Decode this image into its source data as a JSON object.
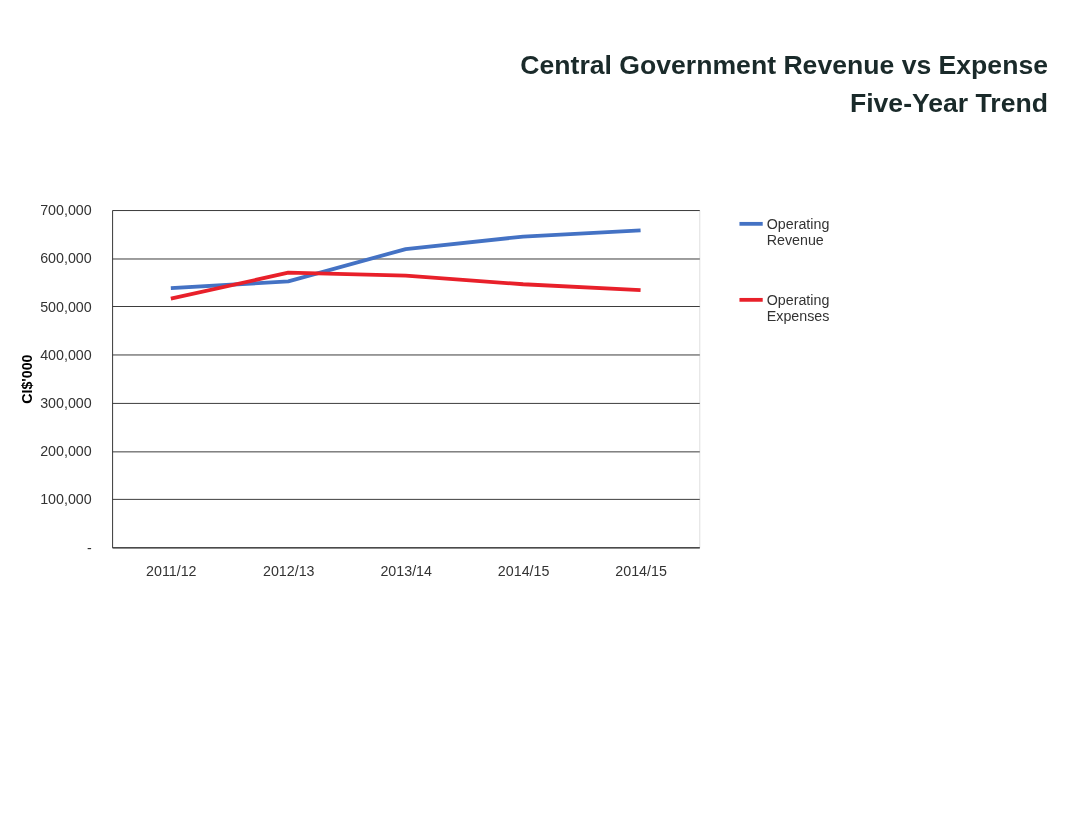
{
  "chart_data": {
    "type": "line",
    "title": "Central Government Revenue vs Expense\nFive-Year Trend",
    "ylabel": "CI$'000",
    "categories": [
      "2011/12",
      "2012/13",
      "2013/14",
      "2014/15",
      "2014/15"
    ],
    "series": [
      {
        "name": "Operating Revenue",
        "color": "#4472c4",
        "values": [
          538000,
          552000,
          619000,
          645000,
          658000
        ]
      },
      {
        "name": "Operating Expenses",
        "color": "#e8202a",
        "values": [
          516000,
          570000,
          564000,
          546000,
          534000
        ]
      }
    ],
    "ylim": [
      0,
      700000
    ],
    "yticks": [
      {
        "value": 0,
        "label": "-"
      },
      {
        "value": 100000,
        "label": "100,000"
      },
      {
        "value": 200000,
        "label": "200,000"
      },
      {
        "value": 300000,
        "label": "300,000"
      },
      {
        "value": 400000,
        "label": "400,000"
      },
      {
        "value": 500000,
        "label": "500,000"
      },
      {
        "value": 600000,
        "label": "600,000"
      },
      {
        "value": 700000,
        "label": "700,000"
      }
    ],
    "grid": "y",
    "legend": "right",
    "marker": "none",
    "line_style": "solid"
  }
}
